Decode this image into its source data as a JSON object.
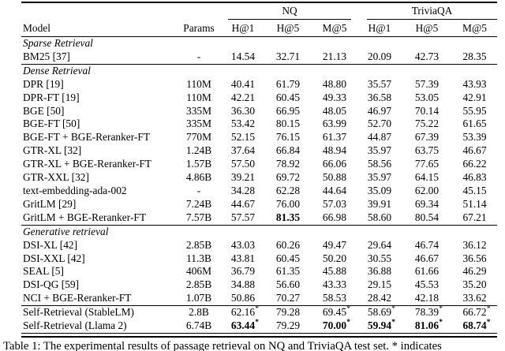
{
  "caption": "Table 1: The experimental results of passage retrieval on NQ and TriviaQA test set. * indicates",
  "table": {
    "groups": [
      {
        "label": "NQ"
      },
      {
        "label": "TriviaQA"
      }
    ],
    "columns": [
      "Model",
      "Params",
      "H@1",
      "H@5",
      "M@5",
      "H@1",
      "H@5",
      "M@5"
    ],
    "sections": [
      {
        "label": "Sparse Retrieval",
        "rows": [
          {
            "model": "BM25 [37]",
            "params": "-",
            "cells": [
              {
                "v": "14.54"
              },
              {
                "v": "32.71"
              },
              {
                "v": "21.13"
              },
              {
                "v": "20.09"
              },
              {
                "v": "42.73"
              },
              {
                "v": "28.35"
              }
            ]
          }
        ]
      },
      {
        "label": "Dense Retrieval",
        "rows": [
          {
            "model": "DPR [19]",
            "params": "110M",
            "cells": [
              {
                "v": "40.41"
              },
              {
                "v": "61.79"
              },
              {
                "v": "48.80"
              },
              {
                "v": "35.57"
              },
              {
                "v": "57.39"
              },
              {
                "v": "43.93"
              }
            ]
          },
          {
            "model": "DPR-FT [19]",
            "params": "110M",
            "cells": [
              {
                "v": "42.21"
              },
              {
                "v": "60.45"
              },
              {
                "v": "49.33"
              },
              {
                "v": "36.58"
              },
              {
                "v": "53.05"
              },
              {
                "v": "42.91"
              }
            ]
          },
          {
            "model": "BGE [50]",
            "params": "335M",
            "cells": [
              {
                "v": "36.30"
              },
              {
                "v": "66.95"
              },
              {
                "v": "48.05"
              },
              {
                "v": "46.97"
              },
              {
                "v": "70.14"
              },
              {
                "v": "55.95"
              }
            ]
          },
          {
            "model": "BGE-FT [50]",
            "params": "335M",
            "cells": [
              {
                "v": "53.42"
              },
              {
                "v": "80.15"
              },
              {
                "v": "63.99"
              },
              {
                "v": "52.70"
              },
              {
                "v": "75.22"
              },
              {
                "v": "61.65"
              }
            ]
          },
          {
            "model": "BGE-FT + BGE-Reranker-FT",
            "params": "770M",
            "cells": [
              {
                "v": "52.15"
              },
              {
                "v": "76.15"
              },
              {
                "v": "61.37"
              },
              {
                "v": "44.87"
              },
              {
                "v": "67.39"
              },
              {
                "v": "53.39"
              }
            ]
          },
          {
            "model": "GTR-XL [32]",
            "params": "1.24B",
            "cells": [
              {
                "v": "37.64"
              },
              {
                "v": "66.84"
              },
              {
                "v": "48.94"
              },
              {
                "v": "35.97"
              },
              {
                "v": "63.75"
              },
              {
                "v": "46.67"
              }
            ]
          },
          {
            "model": "GTR-XL + BGE-Reranker-FT",
            "params": "1.57B",
            "cells": [
              {
                "v": "57.50"
              },
              {
                "v": "78.92"
              },
              {
                "v": "66.06"
              },
              {
                "v": "58.56"
              },
              {
                "v": "77.65"
              },
              {
                "v": "66.22"
              }
            ]
          },
          {
            "model": "GTR-XXL [32]",
            "params": "4.86B",
            "cells": [
              {
                "v": "39.21"
              },
              {
                "v": "69.72"
              },
              {
                "v": "50.88"
              },
              {
                "v": "35.97"
              },
              {
                "v": "64.15"
              },
              {
                "v": "46.83"
              }
            ]
          },
          {
            "model": "text-embedding-ada-002",
            "params": "-",
            "cells": [
              {
                "v": "34.28"
              },
              {
                "v": "62.28"
              },
              {
                "v": "44.64"
              },
              {
                "v": "35.09"
              },
              {
                "v": "62.00"
              },
              {
                "v": "45.15"
              }
            ]
          },
          {
            "model": "GritLM [29]",
            "params": "7.24B",
            "cells": [
              {
                "v": "44.67"
              },
              {
                "v": "76.00"
              },
              {
                "v": "57.03"
              },
              {
                "v": "39.91"
              },
              {
                "v": "69.34"
              },
              {
                "v": "51.14"
              }
            ]
          },
          {
            "model": "GritLM + BGE-Reranker-FT",
            "params": "7.57B",
            "cells": [
              {
                "v": "57.57"
              },
              {
                "v": "81.35",
                "b": true
              },
              {
                "v": "66.98"
              },
              {
                "v": "58.60"
              },
              {
                "v": "80.54"
              },
              {
                "v": "67.21"
              }
            ]
          }
        ]
      },
      {
        "label": "Generative retrieval",
        "rows": [
          {
            "model": "DSI-XL [42]",
            "params": "2.85B",
            "cells": [
              {
                "v": "43.03"
              },
              {
                "v": "60.26"
              },
              {
                "v": "49.47"
              },
              {
                "v": "29.64"
              },
              {
                "v": "46.74"
              },
              {
                "v": "36.12"
              }
            ]
          },
          {
            "model": "DSI-XXL [42]",
            "params": "11.3B",
            "cells": [
              {
                "v": "43.81"
              },
              {
                "v": "60.45"
              },
              {
                "v": "50.20"
              },
              {
                "v": "30.55"
              },
              {
                "v": "46.67"
              },
              {
                "v": "36.56"
              }
            ]
          },
          {
            "model": "SEAL [5]",
            "params": "406M",
            "cells": [
              {
                "v": "36.79"
              },
              {
                "v": "61.35"
              },
              {
                "v": "45.88"
              },
              {
                "v": "36.88"
              },
              {
                "v": "61.66"
              },
              {
                "v": "46.29"
              }
            ]
          },
          {
            "model": "DSI-QG [59]",
            "params": "2.85B",
            "cells": [
              {
                "v": "34.88"
              },
              {
                "v": "56.60"
              },
              {
                "v": "43.33"
              },
              {
                "v": "29.15"
              },
              {
                "v": "45.53"
              },
              {
                "v": "35.20"
              }
            ]
          },
          {
            "model": "NCI + BGE-Reranker-FT",
            "params": "1.07B",
            "cells": [
              {
                "v": "50.86"
              },
              {
                "v": "70.27"
              },
              {
                "v": "58.53"
              },
              {
                "v": "28.42"
              },
              {
                "v": "42.18"
              },
              {
                "v": "33.62"
              }
            ]
          }
        ]
      },
      {
        "label": null,
        "rows": [
          {
            "model": "Self-Retrieval (StableLM)",
            "params": "2.8B",
            "cells": [
              {
                "v": "62.16",
                "star": true
              },
              {
                "v": "79.28"
              },
              {
                "v": "69.45",
                "star": true
              },
              {
                "v": "58.69",
                "star": true
              },
              {
                "v": "78.39",
                "star": true
              },
              {
                "v": "66.72",
                "star": true
              }
            ]
          },
          {
            "model": "Self-Retrieval (Llama 2)",
            "params": "6.74B",
            "cells": [
              {
                "v": "63.44",
                "b": true,
                "star": true
              },
              {
                "v": "79.29"
              },
              {
                "v": "70.00",
                "b": true,
                "star": true
              },
              {
                "v": "59.94",
                "b": true,
                "star": true
              },
              {
                "v": "81.06",
                "b": true,
                "star": true
              },
              {
                "v": "68.74",
                "b": true,
                "star": true
              }
            ]
          }
        ]
      }
    ]
  }
}
